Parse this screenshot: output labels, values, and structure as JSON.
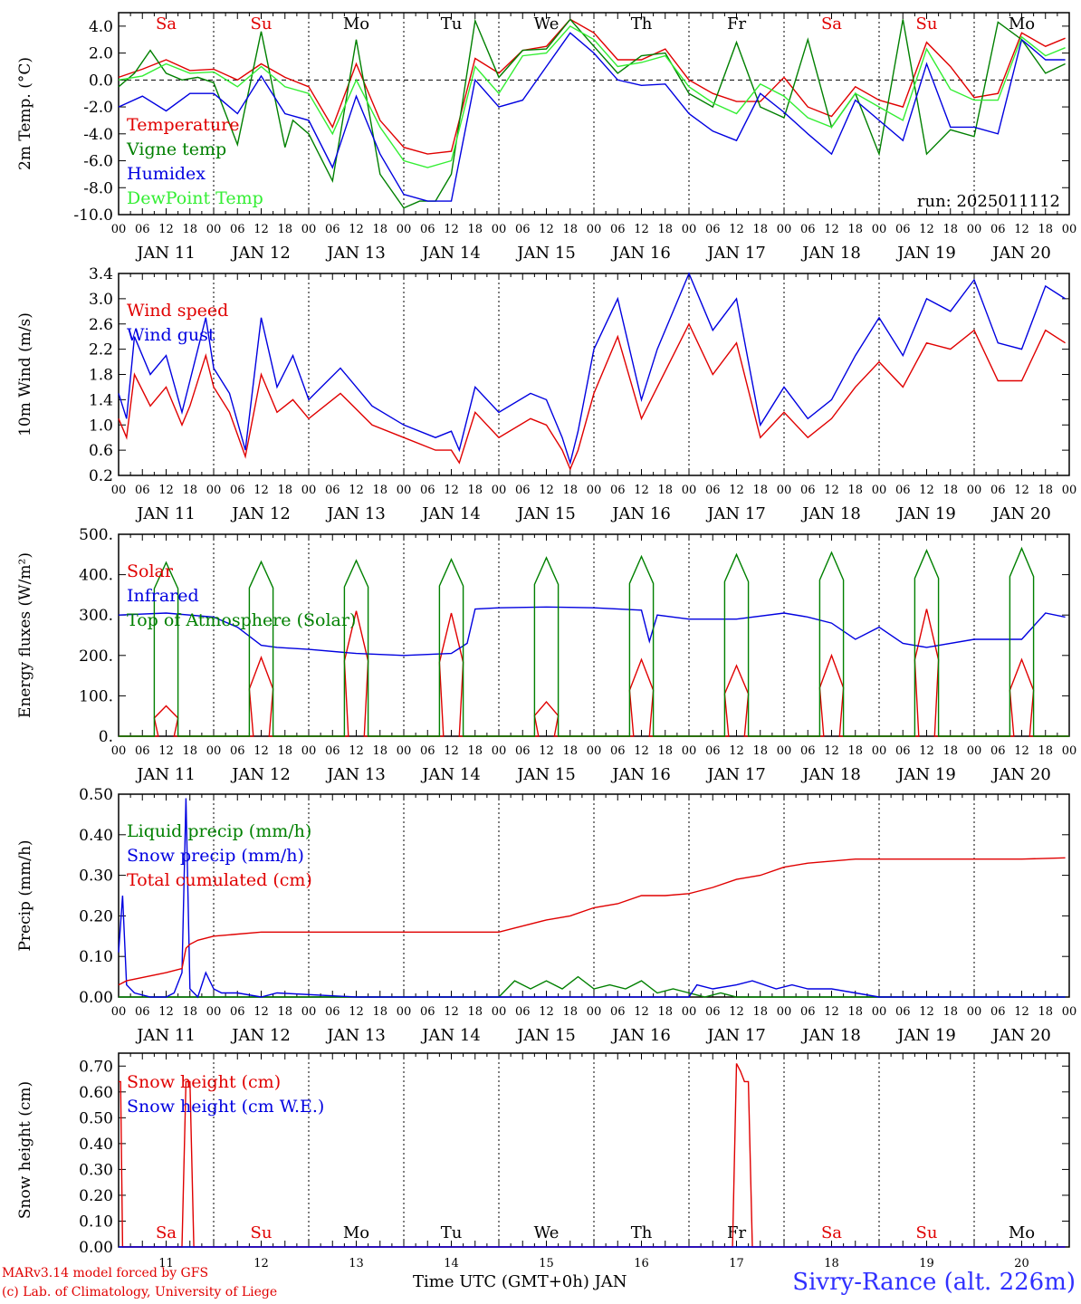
{
  "run_label": "run: 2025011112",
  "day_letters": [
    "Sa",
    "Su",
    "Mo",
    "Tu",
    "We",
    "Th",
    "Fr",
    "Sa",
    "Su",
    "Mo"
  ],
  "day_letter_colors": [
    "#e00000",
    "#e00000",
    "#000000",
    "#000000",
    "#000000",
    "#000000",
    "#000000",
    "#e00000",
    "#e00000",
    "#000000"
  ],
  "date_labels": [
    "JAN 11",
    "JAN 12",
    "JAN 13",
    "JAN 14",
    "JAN 15",
    "JAN 16",
    "JAN 17",
    "JAN 18",
    "JAN 19",
    "JAN 20"
  ],
  "day_numbers": [
    "11",
    "12",
    "13",
    "14",
    "15",
    "16",
    "17",
    "18",
    "19",
    "20"
  ],
  "hour_ticks": [
    "00",
    "06",
    "12",
    "18"
  ],
  "footer": {
    "credit_line1": "MARv3.14 model forced by GFS",
    "credit_line2": "(c) Lab. of Climatology, University of Liege",
    "xlabel": "Time UTC (GMT+0h) JAN",
    "station": "Sivry-Rance (alt. 226m)"
  },
  "chart_data": [
    {
      "type": "line",
      "id": "temp",
      "ylabel": "2m Temp. (°C)",
      "ylim": [
        -10,
        5
      ],
      "yticks": [
        "4.0",
        "2.0",
        "0.0",
        "-2.0",
        "-4.0",
        "-6.0",
        "-8.0",
        "-10.0"
      ],
      "x_unit": "hours since JAN 11 00 UTC",
      "grid": "dotted vertical lines at 00 UTC, dashed line at 0",
      "series": [
        {
          "name": "Temperature",
          "color": "#e00000",
          "x": [
            0,
            6,
            12,
            18,
            24,
            30,
            36,
            42,
            48,
            54,
            60,
            66,
            72,
            78,
            84,
            90,
            96,
            102,
            108,
            114,
            120,
            126,
            132,
            138,
            144,
            150,
            156,
            162,
            168,
            174,
            180,
            186,
            192,
            198,
            204,
            210,
            216,
            222,
            228,
            234,
            239
          ],
          "y": [
            0.2,
            0.8,
            1.5,
            0.7,
            0.8,
            0,
            1.2,
            0.2,
            -0.5,
            -3.5,
            1.2,
            -3,
            -5,
            -5.5,
            -5.3,
            1.6,
            0.5,
            2.2,
            2.5,
            4.5,
            3.5,
            1.5,
            1.5,
            2.3,
            0,
            -1,
            -1.6,
            -1.6,
            0.2,
            -2,
            -2.7,
            -0.5,
            -1.5,
            -2,
            2.8,
            1,
            -1.3,
            -1,
            3.5,
            2.5,
            3.1
          ]
        },
        {
          "name": "Vigne temp",
          "color": "#008000",
          "x": [
            0,
            4,
            8,
            12,
            16,
            20,
            24,
            30,
            36,
            42,
            44,
            48,
            54,
            60,
            66,
            72,
            76,
            80,
            84,
            90,
            96,
            102,
            108,
            114,
            120,
            126,
            132,
            138,
            144,
            150,
            156,
            162,
            168,
            174,
            180,
            186,
            192,
            198,
            204,
            210,
            216,
            222,
            228,
            234,
            239
          ],
          "y": [
            -0.5,
            0.5,
            2.2,
            0.5,
            0,
            0.2,
            -0.2,
            -4.8,
            3.6,
            -5,
            -3,
            -4,
            -7.5,
            3,
            -7,
            -9.5,
            -9,
            -9,
            -7,
            4.4,
            0.2,
            2.2,
            2.3,
            4.5,
            2.5,
            0.5,
            1.8,
            2,
            -1,
            -2,
            2.8,
            -2,
            -2.8,
            3,
            -3.5,
            -1,
            -5.5,
            4.5,
            -5.5,
            -3.7,
            -4.2,
            4.3,
            3,
            0.5,
            1.2
          ]
        },
        {
          "name": "Humidex",
          "color": "#0000e0",
          "x": [
            0,
            6,
            12,
            18,
            24,
            30,
            36,
            42,
            48,
            54,
            60,
            66,
            72,
            78,
            84,
            90,
            96,
            102,
            108,
            114,
            120,
            126,
            132,
            138,
            144,
            150,
            156,
            162,
            168,
            174,
            180,
            186,
            192,
            198,
            204,
            210,
            216,
            222,
            228,
            234,
            239
          ],
          "y": [
            -2,
            -1.2,
            -2.3,
            -1,
            -1,
            -2.5,
            0.3,
            -2.5,
            -3,
            -6.5,
            -1.2,
            -5.5,
            -8.5,
            -9,
            -9,
            0,
            -2,
            -1.5,
            1,
            3.5,
            2,
            0,
            -0.4,
            -0.3,
            -2.5,
            -3.8,
            -4.5,
            -1,
            -2.4,
            -4,
            -5.5,
            -1.5,
            -3,
            -4.5,
            1.2,
            -3.5,
            -3.5,
            -4,
            3,
            1.5,
            1.5
          ]
        },
        {
          "name": "DewPoint Temp",
          "color": "#33ee33",
          "x": [
            0,
            6,
            12,
            18,
            24,
            30,
            36,
            42,
            48,
            54,
            60,
            66,
            72,
            78,
            84,
            90,
            96,
            102,
            108,
            114,
            120,
            126,
            132,
            138,
            144,
            150,
            156,
            162,
            168,
            174,
            180,
            186,
            192,
            198,
            204,
            210,
            216,
            222,
            228,
            234,
            239
          ],
          "y": [
            0,
            0.3,
            1.2,
            0.5,
            0.6,
            -0.5,
            1,
            -0.5,
            -1,
            -4,
            0,
            -3.5,
            -6,
            -6.5,
            -6,
            1,
            -1,
            1.8,
            2,
            4,
            3,
            1,
            1.3,
            1.8,
            -0.5,
            -1.7,
            -2.5,
            -0.3,
            -1.2,
            -2.8,
            -3.5,
            -1,
            -2,
            -3,
            2.3,
            -0.7,
            -1.5,
            -1.5,
            3.2,
            1.8,
            2.4
          ]
        }
      ]
    },
    {
      "type": "line",
      "id": "wind",
      "ylabel": "10m Wind (m/s)",
      "ylim": [
        0.2,
        3.4
      ],
      "yticks": [
        "3.4",
        "3.0",
        "2.6",
        "2.2",
        "1.8",
        "1.4",
        "1.0",
        "0.6",
        "0.2"
      ],
      "series": [
        {
          "name": "Wind speed",
          "color": "#e00000",
          "x": [
            0,
            2,
            4,
            8,
            12,
            16,
            18,
            22,
            24,
            28,
            32,
            36,
            40,
            44,
            48,
            56,
            64,
            72,
            80,
            84,
            86,
            90,
            96,
            104,
            108,
            112,
            114,
            116,
            120,
            126,
            132,
            136,
            144,
            150,
            156,
            162,
            168,
            174,
            180,
            186,
            192,
            198,
            204,
            210,
            216,
            222,
            228,
            234,
            239
          ],
          "y": [
            1.1,
            0.8,
            1.8,
            1.3,
            1.6,
            1.0,
            1.3,
            2.1,
            1.6,
            1.2,
            0.5,
            1.8,
            1.2,
            1.4,
            1.1,
            1.5,
            1.0,
            0.8,
            0.6,
            0.6,
            0.4,
            1.2,
            0.8,
            1.1,
            1.0,
            0.6,
            0.3,
            0.6,
            1.5,
            2.4,
            1.1,
            1.6,
            2.6,
            1.8,
            2.3,
            0.8,
            1.2,
            0.8,
            1.1,
            1.6,
            2.0,
            1.6,
            2.3,
            2.2,
            2.5,
            1.7,
            1.7,
            2.5,
            2.3
          ]
        },
        {
          "name": "Wind gust",
          "color": "#0000e0",
          "x": [
            0,
            2,
            4,
            8,
            12,
            16,
            18,
            22,
            24,
            28,
            32,
            36,
            40,
            44,
            48,
            56,
            64,
            72,
            80,
            84,
            86,
            90,
            96,
            104,
            108,
            112,
            114,
            116,
            120,
            126,
            132,
            136,
            144,
            150,
            156,
            162,
            168,
            174,
            180,
            186,
            192,
            198,
            204,
            210,
            216,
            222,
            228,
            234,
            239
          ],
          "y": [
            1.5,
            1.1,
            2.4,
            1.8,
            2.1,
            1.2,
            1.7,
            2.7,
            1.9,
            1.5,
            0.6,
            2.7,
            1.6,
            2.1,
            1.4,
            1.9,
            1.3,
            1.0,
            0.8,
            0.9,
            0.6,
            1.6,
            1.2,
            1.5,
            1.4,
            0.8,
            0.4,
            0.9,
            2.2,
            3.0,
            1.4,
            2.2,
            3.4,
            2.5,
            3.0,
            1.0,
            1.6,
            1.1,
            1.4,
            2.1,
            2.7,
            2.1,
            3.0,
            2.8,
            3.3,
            2.3,
            2.2,
            3.2,
            3.0
          ]
        }
      ]
    },
    {
      "type": "line",
      "id": "energy",
      "ylabel": "Energy fluxes (W/m²)",
      "ylim": [
        0,
        500
      ],
      "yticks": [
        "500.",
        "400.",
        "300.",
        "200.",
        "100.",
        "0."
      ],
      "series": [
        {
          "name": "Solar",
          "color": "#e00000",
          "peaks": [
            75,
            195,
            310,
            305,
            85,
            190,
            175,
            200,
            315,
            190
          ]
        },
        {
          "name": "Infrared",
          "color": "#0000e0",
          "x": [
            0,
            12,
            24,
            30,
            36,
            40,
            48,
            60,
            72,
            84,
            88,
            90,
            96,
            108,
            120,
            132,
            134,
            136,
            144,
            156,
            168,
            174,
            180,
            186,
            192,
            198,
            204,
            216,
            228,
            234,
            239
          ],
          "y": [
            300,
            305,
            295,
            270,
            225,
            220,
            215,
            205,
            200,
            205,
            230,
            315,
            318,
            320,
            318,
            312,
            235,
            300,
            290,
            290,
            305,
            295,
            280,
            240,
            270,
            230,
            220,
            240,
            240,
            305,
            295
          ]
        },
        {
          "name": "Top of Atmosphere (Solar)",
          "color": "#008000",
          "peaks": [
            430,
            432,
            435,
            438,
            442,
            445,
            450,
            455,
            460,
            465
          ]
        }
      ]
    },
    {
      "type": "line",
      "id": "precip",
      "ylabel": "Precip (mm/h)",
      "ylim": [
        0,
        0.5
      ],
      "yticks": [
        "0.50",
        "0.40",
        "0.30",
        "0.20",
        "0.10",
        "0.00"
      ],
      "series": [
        {
          "name": "Liquid precip (mm/h)",
          "color": "#008000",
          "x": [
            0,
            96,
            100,
            104,
            108,
            112,
            116,
            120,
            124,
            128,
            132,
            136,
            140,
            144,
            148,
            152,
            156,
            160,
            164,
            168,
            239
          ],
          "y": [
            0,
            0,
            0.04,
            0.02,
            0.04,
            0.02,
            0.05,
            0.02,
            0.03,
            0.02,
            0.04,
            0.01,
            0.02,
            0.01,
            0.0,
            0.01,
            0.0,
            0.0,
            0.0,
            0.0,
            0
          ]
        },
        {
          "name": "Snow precip (mm/h)",
          "color": "#0000e0",
          "x": [
            0,
            1,
            2,
            4,
            8,
            12,
            14,
            16,
            17,
            18,
            20,
            22,
            24,
            26,
            30,
            36,
            40,
            60,
            84,
            96,
            100,
            120,
            132,
            144,
            146,
            150,
            156,
            160,
            166,
            170,
            174,
            180,
            186,
            192,
            204,
            228,
            239
          ],
          "y": [
            0.11,
            0.25,
            0.03,
            0.01,
            0.0,
            0.0,
            0.01,
            0.06,
            0.49,
            0.02,
            0.0,
            0.06,
            0.02,
            0.01,
            0.01,
            0.0,
            0.01,
            0.0,
            0.0,
            0.0,
            0.0,
            0.0,
            0.0,
            0.0,
            0.03,
            0.02,
            0.03,
            0.04,
            0.02,
            0.03,
            0.02,
            0.02,
            0.01,
            0.0,
            0.0,
            0.0,
            0.0
          ]
        },
        {
          "name": "Total cumulated (cm)",
          "color": "#e00000",
          "x": [
            0,
            2,
            12,
            16,
            17,
            18,
            20,
            24,
            36,
            48,
            72,
            96,
            100,
            108,
            114,
            120,
            126,
            132,
            138,
            144,
            150,
            156,
            162,
            168,
            174,
            180,
            186,
            192,
            204,
            216,
            228,
            239
          ],
          "y": [
            0.03,
            0.04,
            0.06,
            0.07,
            0.12,
            0.13,
            0.14,
            0.15,
            0.16,
            0.16,
            0.16,
            0.16,
            0.17,
            0.19,
            0.2,
            0.22,
            0.23,
            0.25,
            0.25,
            0.255,
            0.27,
            0.29,
            0.3,
            0.32,
            0.33,
            0.335,
            0.34,
            0.34,
            0.34,
            0.34,
            0.34,
            0.343
          ]
        }
      ]
    },
    {
      "type": "line",
      "id": "snow",
      "ylabel": "Snow height (cm)",
      "ylim": [
        0,
        0.75
      ],
      "yticks": [
        "0.70",
        "0.60",
        "0.50",
        "0.40",
        "0.30",
        "0.20",
        "0.10",
        "0.00"
      ],
      "series": [
        {
          "name": "Snow height (cm)",
          "color": "#e00000",
          "x": [
            0,
            0.5,
            1,
            16,
            17,
            18,
            19,
            155,
            156,
            157,
            158,
            159,
            160,
            239
          ],
          "y": [
            0.64,
            0.64,
            0,
            0,
            0.64,
            0.64,
            0,
            0,
            0.71,
            0.68,
            0.64,
            0.64,
            0,
            0
          ]
        },
        {
          "name": "Snow height (cm W.E.)",
          "color": "#0000e0",
          "x": [
            0,
            239
          ],
          "y": [
            0,
            0
          ]
        }
      ]
    }
  ]
}
